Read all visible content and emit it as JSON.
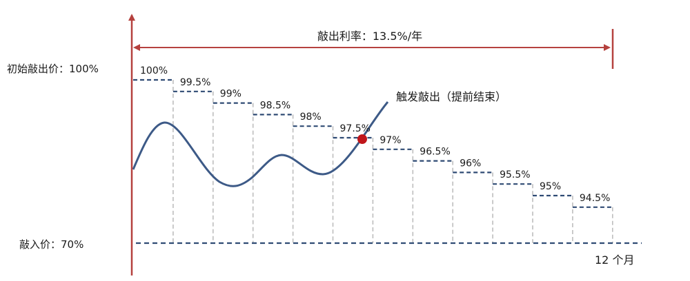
{
  "labels": {
    "knockout_rate": "敲出利率：13.5%/年",
    "initial_price": "初始敲出价：100%",
    "knock_in_price": "敲入价：70%",
    "trigger_text": "触发敲出（提前结束）",
    "end_label": "12 个月"
  },
  "chart_data": {
    "type": "line",
    "title": "",
    "xlabel": "",
    "ylabel": "",
    "step_levels": [
      "100%",
      "99.5%",
      "99%",
      "98.5%",
      "98%",
      "97.5%",
      "97%",
      "96.5%",
      "96%",
      "95.5%",
      "95%",
      "94.5%"
    ],
    "step_values": [
      100,
      99.5,
      99,
      98.5,
      98,
      97.5,
      97,
      96.5,
      96,
      95.5,
      95,
      94.5
    ],
    "knock_in": 70,
    "knock_out_rate": "13.5%/年",
    "period": "12 个月",
    "knockout_month": 6
  },
  "colors": {
    "axis": "#b5413e",
    "step": "#2e4a73",
    "path": "#3d5a87",
    "guide": "#bdbdbd",
    "marker": "#c0161b"
  }
}
